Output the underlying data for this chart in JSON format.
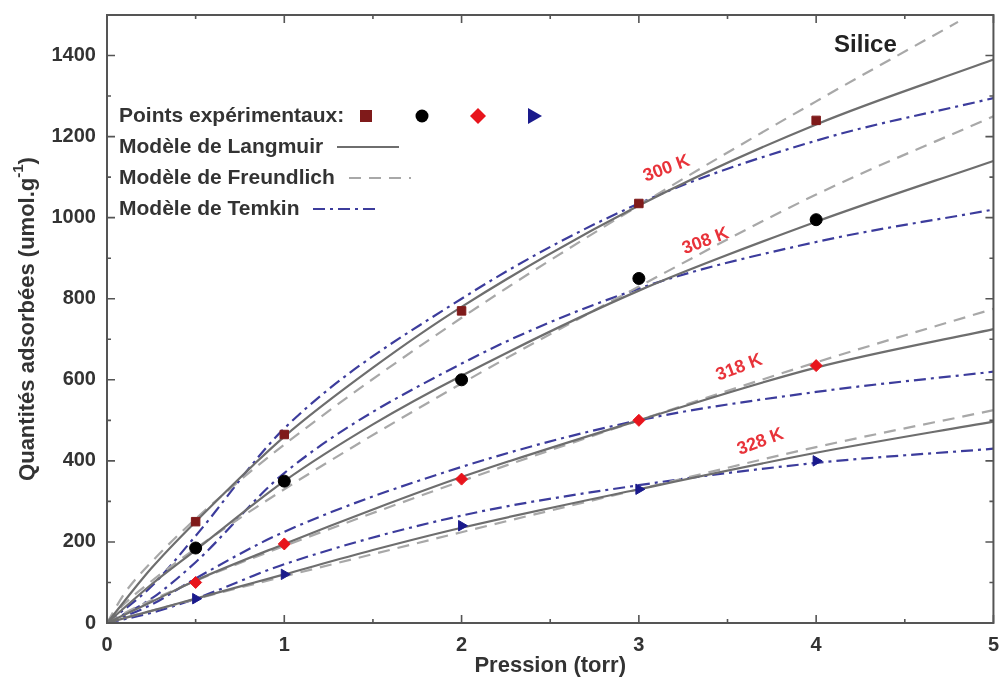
{
  "chart_data": {
    "type": "line",
    "xlabel": "Pression (torr)",
    "ylabel": "Quantités adsorbées (umol.g$^{-1}$)",
    "xlim": [
      0,
      5
    ],
    "xticks": [
      0,
      {
        "value": 0.5,
        "label": null
      },
      1,
      {
        "value": 1.5,
        "label": null
      },
      2,
      {
        "value": 2.5,
        "label": null
      },
      3,
      {
        "value": 3.5,
        "label": null
      },
      4,
      {
        "value": 4.5,
        "label": null
      },
      5
    ],
    "ylim": [
      0,
      1500
    ],
    "yticks": [
      0,
      {
        "value": 100,
        "label": null
      },
      200,
      {
        "value": 300,
        "label": null
      },
      400,
      {
        "value": 500,
        "label": null
      },
      600,
      {
        "value": 700,
        "label": null
      },
      800,
      {
        "value": 900,
        "label": null
      },
      1000,
      {
        "value": 1100,
        "label": null
      },
      1200,
      {
        "value": 1300,
        "label": null
      },
      1400
    ],
    "legend": "top left",
    "annotations": [
      "Silice",
      {
        "text": "300 K",
        "x": 3.2,
        "y": 1070
      },
      {
        "text": "308 K",
        "x": 3.42,
        "y": 891
      },
      {
        "text": "318 K",
        "x": 3.61,
        "y": 579
      },
      {
        "text": "328 K",
        "x": 3.73,
        "y": 396
      }
    ],
    "series": [
      {
        "type": "line",
        "name": "Modèle de Langmuir",
        "color": "#6e6e6e",
        "line_style": "solid",
        "marker": "none",
        "x": [
          0,
          0.25,
          0.5,
          1,
          1.5,
          2,
          3,
          4,
          5
        ],
        "values": [
          0,
          135,
          250,
          460,
          630,
          780,
          1030,
          1230,
          1390
        ]
      },
      {
        "type": "line",
        "color": "#6e6e6e",
        "line_style": "solid",
        "marker": "none",
        "x": [
          0,
          0.25,
          0.5,
          1,
          1.5,
          2,
          3,
          4,
          5
        ],
        "values": [
          0,
          95,
          180,
          350,
          490,
          610,
          820,
          990,
          1140
        ]
      },
      {
        "type": "line",
        "color": "#6e6e6e",
        "line_style": "solid",
        "marker": "none",
        "x": [
          0,
          0.25,
          0.5,
          1,
          1.5,
          2,
          3,
          4,
          5
        ],
        "values": [
          0,
          52,
          105,
          195,
          280,
          360,
          500,
          630,
          725
        ]
      },
      {
        "type": "line",
        "color": "#6e6e6e",
        "line_style": "solid",
        "marker": "none",
        "x": [
          0,
          0.25,
          0.5,
          1,
          1.5,
          2,
          3,
          4,
          5
        ],
        "values": [
          0,
          30,
          60,
          120,
          180,
          235,
          330,
          420,
          497
        ]
      },
      {
        "type": "line",
        "name": "Modèle de Freundlich",
        "color": "#a8a8a8",
        "line_style": "dashed",
        "marker": "none",
        "x": [
          0,
          0.1,
          0.25,
          0.5,
          1,
          2,
          3,
          4,
          4.8
        ],
        "values": [
          0,
          74,
          150,
          257,
          440,
          753,
          1030,
          1287,
          1483
        ]
      },
      {
        "type": "line",
        "color": "#a8a8a8",
        "line_style": "dashed",
        "marker": "none",
        "x": [
          0,
          0.1,
          0.25,
          0.5,
          1,
          2,
          3,
          4,
          5
        ],
        "values": [
          0,
          48,
          103,
          184,
          330,
          591,
          830,
          1057,
          1250
        ]
      },
      {
        "type": "line",
        "color": "#a8a8a8",
        "line_style": "dashed",
        "marker": "none",
        "x": [
          0,
          0.1,
          0.25,
          0.5,
          1,
          2,
          3,
          4,
          5
        ],
        "values": [
          0,
          25,
          56,
          104,
          190,
          350,
          500,
          643,
          775
        ]
      },
      {
        "type": "line",
        "color": "#a8a8a8",
        "line_style": "dashed",
        "marker": "none",
        "x": [
          0,
          0.1,
          0.25,
          0.5,
          1,
          2,
          3,
          4,
          5
        ],
        "values": [
          0,
          13,
          30,
          59,
          115,
          224,
          330,
          434,
          525
        ]
      },
      {
        "type": "line",
        "name": "Modèle de Temkin",
        "color": "#3c3c9c",
        "line_style": "dashdot",
        "marker": "none",
        "x": [
          0,
          0.25,
          0.5,
          1,
          2,
          3,
          4,
          5
        ],
        "values": [
          0,
          90,
          215,
          480,
          800,
          1035,
          1190,
          1295
        ]
      },
      {
        "type": "line",
        "color": "#3c3c9c",
        "line_style": "dashdot",
        "marker": "none",
        "x": [
          0,
          0.25,
          0.5,
          1,
          2,
          3,
          4,
          5
        ],
        "values": [
          0,
          60,
          150,
          370,
          640,
          825,
          940,
          1020
        ]
      },
      {
        "type": "line",
        "color": "#3c3c9c",
        "line_style": "dashdot",
        "marker": "none",
        "x": [
          0,
          0.25,
          0.5,
          1,
          2,
          3,
          4,
          5
        ],
        "values": [
          0,
          45,
          110,
          225,
          385,
          500,
          570,
          620
        ]
      },
      {
        "type": "line",
        "color": "#3c3c9c",
        "line_style": "dashdot",
        "marker": "none",
        "x": [
          0,
          0.25,
          0.5,
          1,
          2,
          3,
          4,
          5
        ],
        "values": [
          0,
          25,
          60,
          145,
          265,
          340,
          395,
          430
        ]
      },
      {
        "type": "scatter",
        "name": "Points expérimentaux:",
        "color": "#7f1a1a",
        "marker": "square",
        "x": [
          0.5,
          1,
          2,
          3,
          4
        ],
        "values": [
          250,
          465,
          770,
          1035,
          1240
        ]
      },
      {
        "type": "scatter",
        "color": "#000000",
        "marker": "circle",
        "x": [
          0.5,
          1,
          2,
          3,
          4
        ],
        "values": [
          185,
          350,
          600,
          850,
          995
        ]
      },
      {
        "type": "scatter",
        "color": "#e8141c",
        "marker": "diamond",
        "x": [
          0.5,
          1,
          2,
          3,
          4
        ],
        "values": [
          100,
          195,
          355,
          500,
          635
        ]
      },
      {
        "type": "scatter",
        "color": "#1a1a8c",
        "marker": "triangle",
        "x": [
          0.5,
          1,
          2,
          3,
          4
        ],
        "values": [
          60,
          120,
          240,
          330,
          400
        ]
      }
    ]
  }
}
